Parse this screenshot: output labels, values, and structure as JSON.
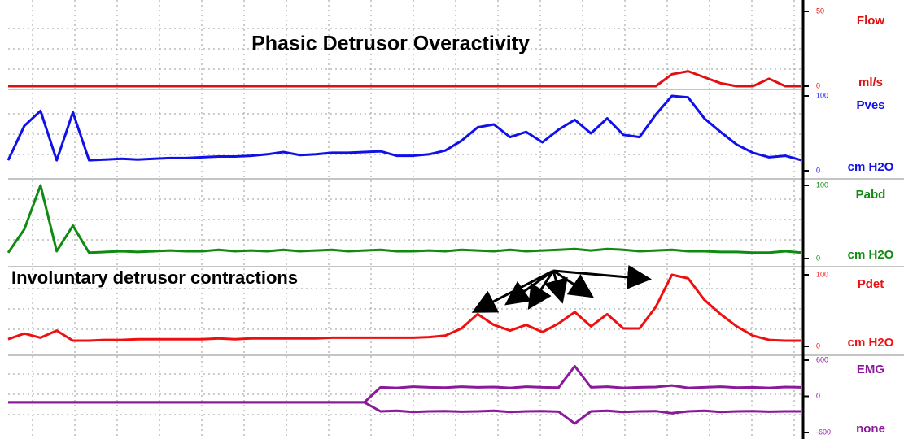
{
  "chart_data": [
    {
      "type": "line",
      "title": "Phasic Detrusor Overactivity",
      "label": "Flow",
      "unit": "ml/s",
      "ylim": [
        0,
        50
      ],
      "yticks": [
        0,
        50
      ],
      "series": [
        {
          "color": "#e01010",
          "values": [
            0,
            0,
            0,
            0,
            0,
            0,
            0,
            0,
            0,
            0,
            0,
            0,
            0,
            0,
            0,
            0,
            0,
            0,
            0,
            0,
            0,
            0,
            0,
            0,
            0,
            0,
            0,
            0,
            0,
            0,
            0,
            0,
            0,
            0,
            0,
            0,
            0,
            0,
            0,
            0,
            0,
            8,
            10,
            6,
            2,
            0,
            0,
            5,
            0,
            0
          ]
        }
      ]
    },
    {
      "type": "line",
      "label": "Pves",
      "unit": "cm H2O",
      "ylim": [
        0,
        100
      ],
      "yticks": [
        0,
        100
      ],
      "series": [
        {
          "color": "#1010e8",
          "values": [
            14,
            60,
            80,
            14,
            78,
            14,
            15,
            16,
            15,
            16,
            17,
            17,
            18,
            19,
            19,
            20,
            22,
            25,
            21,
            22,
            24,
            24,
            25,
            26,
            20,
            20,
            22,
            27,
            40,
            58,
            62,
            45,
            52,
            38,
            55,
            68,
            50,
            70,
            48,
            45,
            75,
            100,
            98,
            70,
            52,
            35,
            24,
            18,
            20,
            14
          ]
        }
      ]
    },
    {
      "type": "line",
      "label": "Pabd",
      "unit": "cm H2O",
      "ylim": [
        0,
        100
      ],
      "yticks": [
        0,
        100
      ],
      "series": [
        {
          "color": "#108a10",
          "values": [
            8,
            40,
            100,
            10,
            45,
            8,
            9,
            10,
            9,
            10,
            11,
            10,
            10,
            12,
            10,
            11,
            10,
            12,
            10,
            11,
            12,
            10,
            11,
            12,
            10,
            10,
            11,
            10,
            12,
            11,
            10,
            12,
            10,
            11,
            12,
            13,
            11,
            13,
            12,
            10,
            11,
            12,
            10,
            10,
            9,
            9,
            8,
            8,
            10,
            8
          ]
        }
      ]
    },
    {
      "type": "line",
      "label": "Pdet",
      "unit": "cm H2O",
      "annotation": "Involuntary detrusor contractions",
      "ylim": [
        0,
        100
      ],
      "yticks": [
        0,
        100
      ],
      "series": [
        {
          "color": "#ee1010",
          "values": [
            10,
            18,
            12,
            22,
            8,
            8,
            9,
            9,
            10,
            10,
            10,
            10,
            10,
            11,
            10,
            11,
            11,
            11,
            11,
            11,
            12,
            12,
            12,
            12,
            12,
            12,
            13,
            15,
            25,
            45,
            30,
            22,
            30,
            20,
            32,
            48,
            28,
            45,
            25,
            25,
            55,
            100,
            95,
            65,
            45,
            28,
            15,
            9,
            8,
            8
          ]
        }
      ]
    },
    {
      "type": "line",
      "label": "EMG",
      "unit": "none",
      "ylim": [
        -600,
        600
      ],
      "yticks": [
        -600,
        0,
        600
      ],
      "series": [
        {
          "color": "#8a1a9a",
          "values": [
            -100,
            -100,
            -100,
            -100,
            -100,
            -100,
            -100,
            -100,
            -100,
            -100,
            -100,
            -100,
            -100,
            -100,
            -100,
            -100,
            -100,
            -100,
            -100,
            -100,
            -100,
            -100,
            -100,
            150,
            140,
            160,
            150,
            145,
            160,
            150,
            155,
            140,
            160,
            150,
            145,
            500,
            150,
            160,
            140,
            150,
            155,
            180,
            140,
            150,
            160,
            145,
            150,
            140,
            155,
            150
          ]
        },
        {
          "color": "#8a1a9a",
          "values": [
            -100,
            -100,
            -100,
            -100,
            -100,
            -100,
            -100,
            -100,
            -100,
            -100,
            -100,
            -100,
            -100,
            -100,
            -100,
            -100,
            -100,
            -100,
            -100,
            -100,
            -100,
            -100,
            -100,
            -250,
            -240,
            -260,
            -250,
            -245,
            -255,
            -250,
            -240,
            -260,
            -250,
            -245,
            -255,
            -450,
            -250,
            -240,
            -260,
            -250,
            -245,
            -280,
            -250,
            -240,
            -260,
            -250,
            -245,
            -255,
            -250,
            -250
          ]
        }
      ]
    }
  ]
}
